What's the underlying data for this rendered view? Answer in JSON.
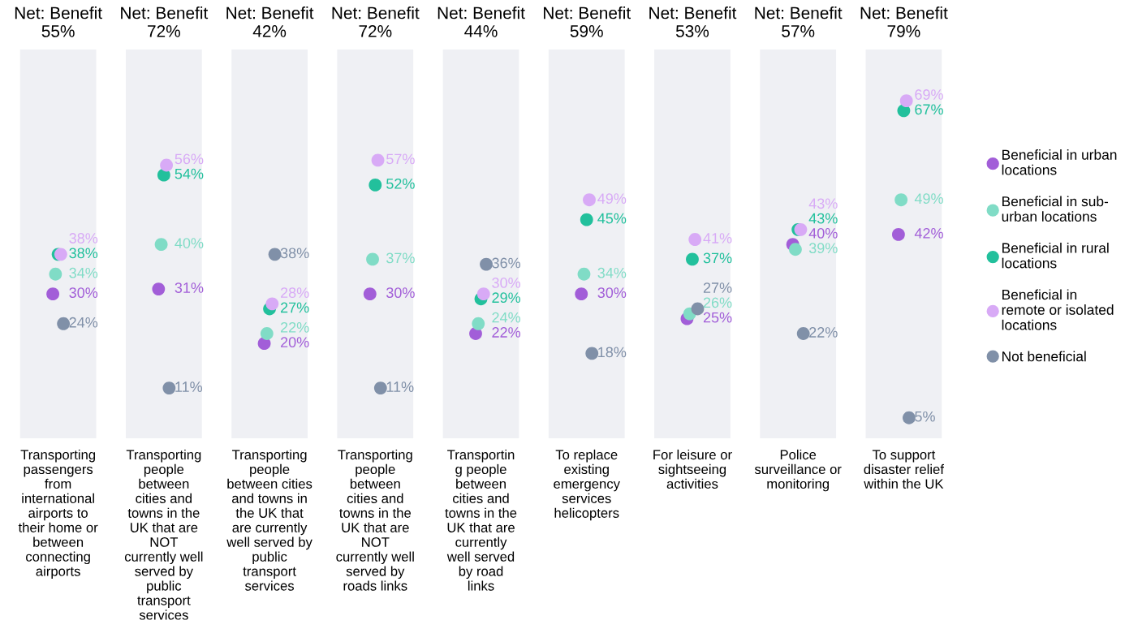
{
  "chart_data": {
    "type": "scatter",
    "categories": [
      "Transporting\npassengers\nfrom\ninternational\nairports to\ntheir home or\nbetween\nconnecting\nairports",
      "Transporting\npeople\nbetween\ncities and\ntowns in the\nUK that are\nNOT\ncurrently well\nserved by\npublic\ntransport\nservices",
      "Transporting\npeople\nbetween cities\nand towns in\nthe UK that\nare currently\nwell served by\npublic\ntransport\nservices",
      "Transporting\npeople\nbetween\ncities and\ntowns in the\nUK that are\nNOT\ncurrently well\nserved by\nroads links",
      "Transportin\ng people\nbetween\ncities and\ntowns in the\nUK that are\ncurrently\nwell served\nby road\nlinks",
      "To replace\nexisting\nemergency\nservices\nhelicopters",
      "For leisure or\nsightseeing\nactivities",
      "Police\nsurveillance or\nmonitoring",
      "To support\ndisaster relief\nwithin the UK"
    ],
    "series": [
      {
        "name": "Beneficial in urban\nlocations",
        "color": "#a25ed8",
        "values": [
          30,
          31,
          20,
          30,
          22,
          30,
          25,
          40,
          42
        ],
        "value_labels": [
          "30%",
          "31%",
          "20%",
          "30%",
          "22%",
          "30%",
          "25%",
          "40%",
          "42%"
        ]
      },
      {
        "name": "Beneficial in sub-\nurban locations",
        "color": "#80dcc6",
        "values": [
          34,
          40,
          22,
          37,
          24,
          34,
          26,
          39,
          49
        ],
        "value_labels": [
          "34%",
          "40%",
          "22%",
          "37%",
          "24%",
          "34%",
          "26%",
          "39%",
          "49%"
        ]
      },
      {
        "name": "Beneficial in rural\nlocations",
        "color": "#22c09c",
        "values": [
          38,
          54,
          27,
          52,
          29,
          45,
          37,
          43,
          67
        ],
        "value_labels": [
          "38%",
          "54%",
          "27%",
          "52%",
          "29%",
          "45%",
          "37%",
          "43%",
          "67%"
        ]
      },
      {
        "name": "Beneficial in\nremote or isolated\nlocations",
        "color": "#d8aaf6",
        "values": [
          38,
          56,
          28,
          57,
          30,
          49,
          41,
          43,
          69
        ],
        "value_labels": [
          "38%",
          "56%",
          "28%",
          "57%",
          "30%",
          "49%",
          "41%",
          "43%",
          "69%"
        ]
      },
      {
        "name": "Not beneficial",
        "color": "#8090a8",
        "values": [
          24,
          11,
          38,
          11,
          36,
          18,
          27,
          22,
          5
        ],
        "value_labels": [
          "24%",
          "11%",
          "38%",
          "11%",
          "36%",
          "18%",
          "27%",
          "22%",
          "5%"
        ]
      }
    ],
    "annotations": [
      "Net: Benefit\n55%",
      "Net: Benefit\n72%",
      "Net: Benefit\n42%",
      "Net: Benefit\n72%",
      "Net: Benefit\n44%",
      "Net: Benefit\n59%",
      "Net: Benefit\n53%",
      "Net: Benefit\n57%",
      "Net: Benefit\n79%"
    ],
    "bands": [
      {
        "axis": "x",
        "from": "Transporting\npassengers\nfrom\ninternational\nairports to\ntheir home or\nbetween\nconnecting\nairports",
        "to": "Transporting\npassengers\nfrom\ninternational\nairports to\ntheir home or\nbetween\nconnecting\nairports",
        "color": "#eff0f4"
      },
      {
        "axis": "x",
        "from": "Transporting\npeople\nbetween\ncities and\ntowns in the\nUK that are\nNOT\ncurrently well\nserved by\npublic\ntransport\nservices",
        "to": "Transporting\npeople\nbetween\ncities and\ntowns in the\nUK that are\nNOT\ncurrently well\nserved by\npublic\ntransport\nservices",
        "color": "#eff0f4"
      },
      {
        "axis": "x",
        "from": "Transporting\npeople\nbetween cities\nand towns in\nthe UK that\nare currently\nwell served by\npublic\ntransport\nservices",
        "to": "Transporting\npeople\nbetween cities\nand towns in\nthe UK that\nare currently\nwell served by\npublic\ntransport\nservices",
        "color": "#eff0f4"
      },
      {
        "axis": "x",
        "from": "Transporting\npeople\nbetween\ncities and\ntowns in the\nUK that are\nNOT\ncurrently well\nserved by\nroads links",
        "to": "Transporting\npeople\nbetween\ncities and\ntowns in the\nUK that are\nNOT\ncurrently well\nserved by\nroads links",
        "color": "#eff0f4"
      },
      {
        "axis": "x",
        "from": "Transportin\ng people\nbetween\ncities and\ntowns in the\nUK that are\ncurrently\nwell served\nby road\nlinks",
        "to": "Transportin\ng people\nbetween\ncities and\ntowns in the\nUK that are\ncurrently\nwell served\nby road\nlinks",
        "color": "#eff0f4"
      },
      {
        "axis": "x",
        "from": "To replace\nexisting\nemergency\nservices\nhelicopters",
        "to": "To replace\nexisting\nemergency\nservices\nhelicopters",
        "color": "#eff0f4"
      },
      {
        "axis": "x",
        "from": "For leisure or\nsightseeing\nactivities",
        "to": "For leisure or\nsightseeing\nactivities",
        "color": "#eff0f4"
      },
      {
        "axis": "x",
        "from": "Police\nsurveillance or\nmonitoring",
        "to": "Police\nsurveillance or\nmonitoring",
        "color": "#eff0f4"
      },
      {
        "axis": "x",
        "from": "To support\ndisaster relief\nwithin the UK",
        "to": "To support\ndisaster relief\nwithin the UK",
        "color": "#eff0f4"
      }
    ],
    "tick_labels": "x",
    "legend": "right",
    "marker": "circle",
    "grid": false
  }
}
